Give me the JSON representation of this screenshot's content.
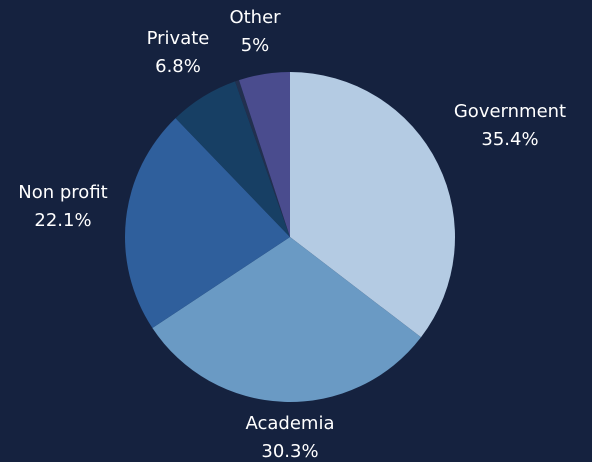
{
  "chart_data": {
    "type": "pie",
    "categories": [
      "Government",
      "Academia",
      "Non profit",
      "Private",
      null,
      "Other"
    ],
    "values": [
      35.4,
      30.3,
      22.1,
      6.8,
      0.4,
      5
    ],
    "value_labels": [
      "35.4%",
      "30.3%",
      "22.1%",
      "6.8%",
      null,
      "5%"
    ],
    "colors": [
      "#b4cbe3",
      "#6a9ac4",
      "#2f5f9c",
      "#173f64",
      "#22304f",
      "#4a4c8e"
    ]
  }
}
